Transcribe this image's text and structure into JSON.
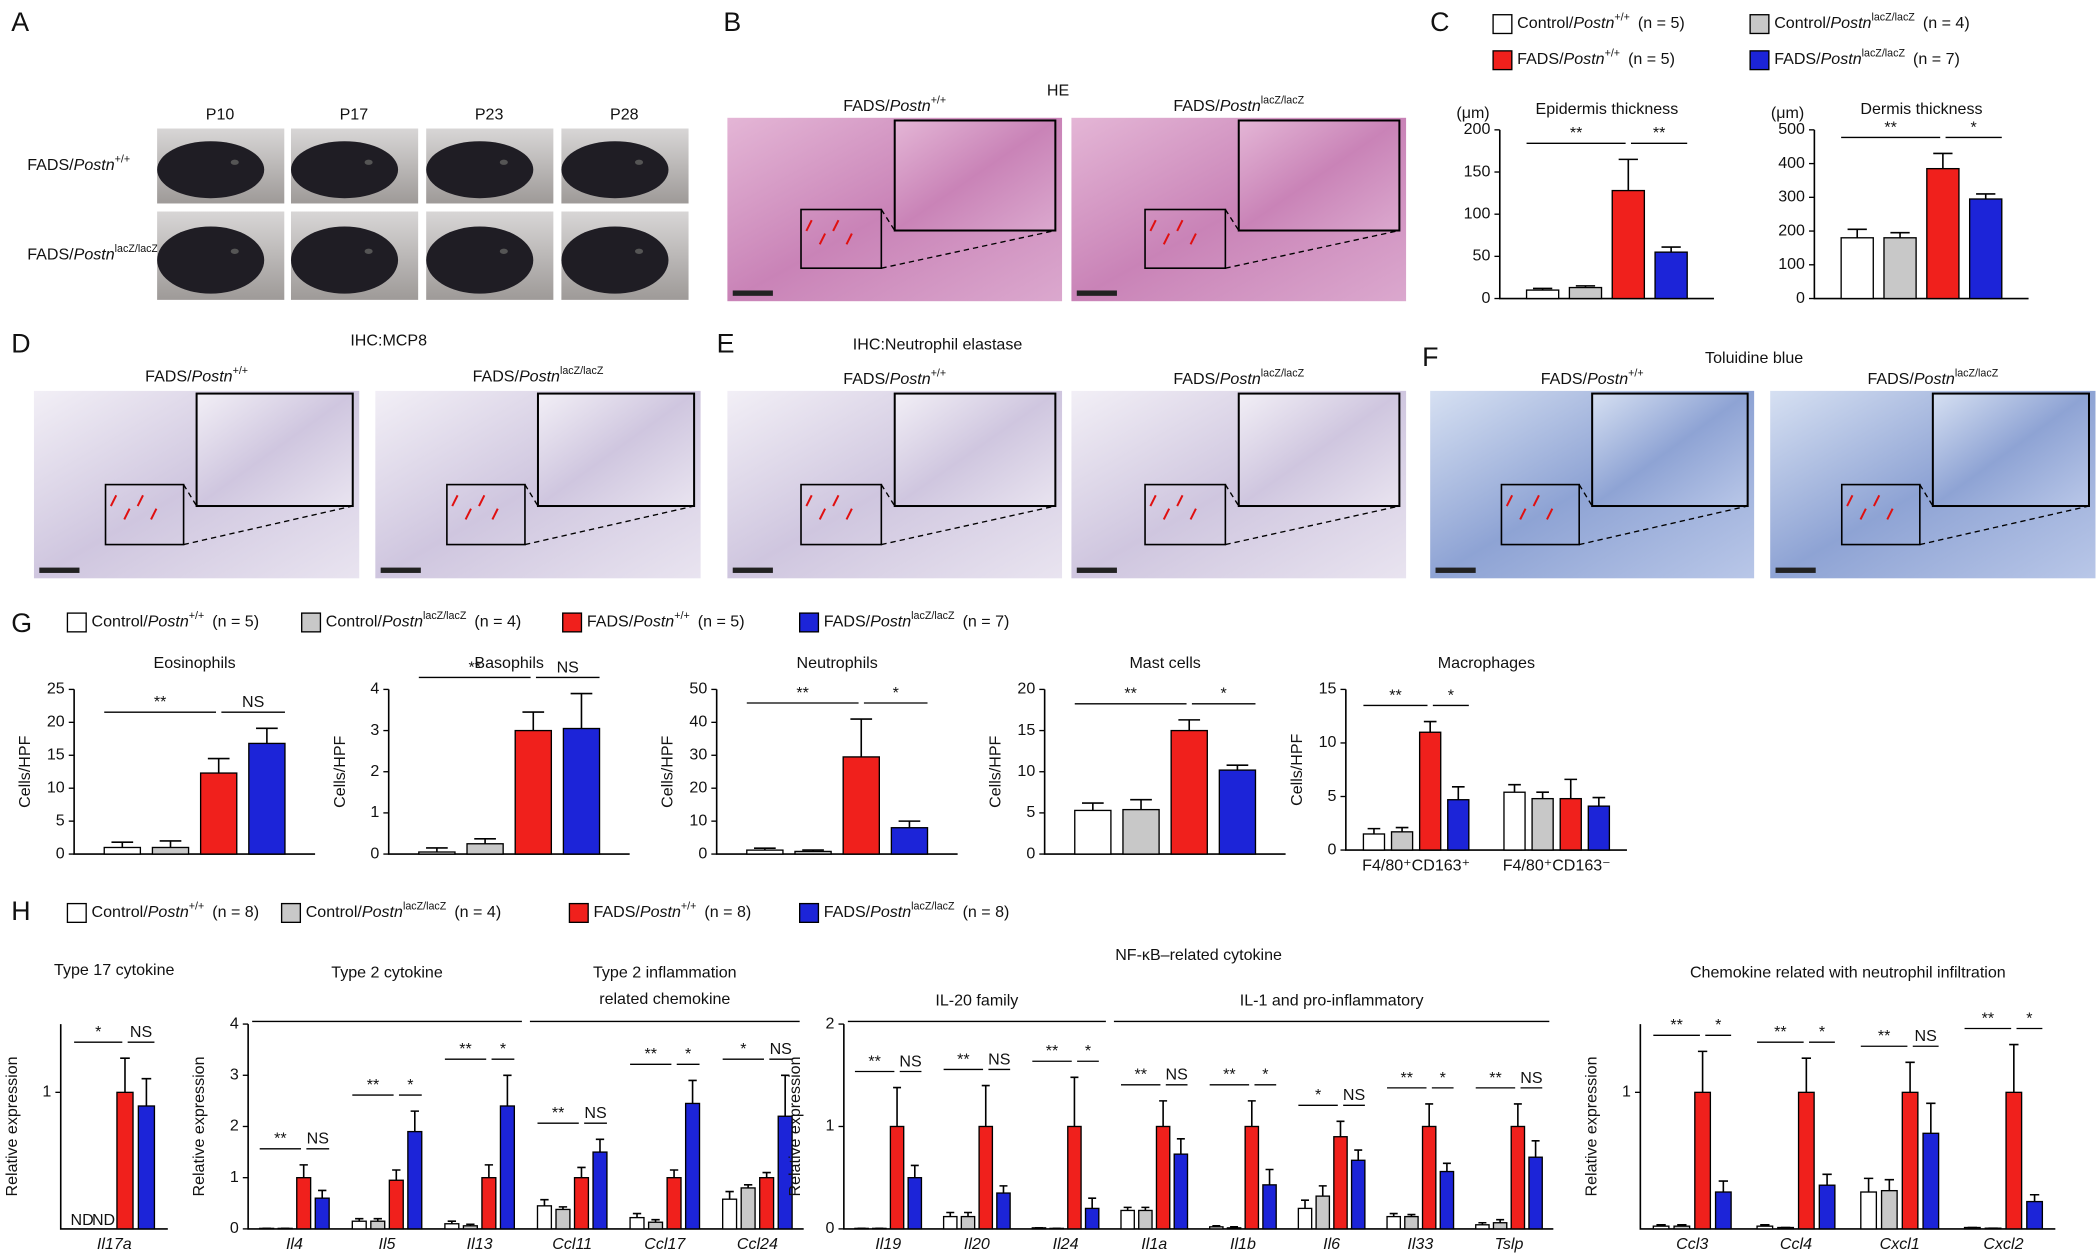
{
  "panels": {
    "letters": [
      "A",
      "B",
      "C",
      "D",
      "E",
      "F",
      "G",
      "H"
    ],
    "A": {
      "timepoints": [
        "P10",
        "P17",
        "P23",
        "P28"
      ],
      "rows": [
        {
          "lead": "FADS/",
          "gene": "Postn",
          "sup": "+/+"
        },
        {
          "lead": "FADS/",
          "gene": "Postn",
          "sup": "lacZ/lacZ"
        }
      ]
    },
    "B": {
      "title": "HE",
      "images": [
        {
          "lead": "FADS/",
          "gene": "Postn",
          "sup": "+/+"
        },
        {
          "lead": "FADS/",
          "gene": "Postn",
          "sup": "lacZ/lacZ"
        }
      ]
    },
    "C": {
      "legend": [
        {
          "lead": "Control/",
          "gene": "Postn",
          "sup": "+/+",
          "n": "(n = 5)"
        },
        {
          "lead": "Control/",
          "gene": "Postn",
          "sup": "lacZ/lacZ",
          "n": "(n = 4)"
        },
        {
          "lead": "FADS/",
          "gene": "Postn",
          "sup": "+/+",
          "n": "(n = 5)"
        },
        {
          "lead": "FADS/",
          "gene": "Postn",
          "sup": "lacZ/lacZ",
          "n": "(n = 7)"
        }
      ]
    },
    "D": {
      "title": "IHC:MCP8",
      "images": [
        {
          "lead": "FADS/",
          "gene": "Postn",
          "sup": "+/+"
        },
        {
          "lead": "FADS/",
          "gene": "Postn",
          "sup": "lacZ/lacZ"
        }
      ]
    },
    "E": {
      "title": "IHC:Neutrophil elastase",
      "images": [
        {
          "lead": "FADS/",
          "gene": "Postn",
          "sup": "+/+"
        },
        {
          "lead": "FADS/",
          "gene": "Postn",
          "sup": "lacZ/lacZ"
        }
      ]
    },
    "F": {
      "title": "Toluidine blue",
      "images": [
        {
          "lead": "FADS/",
          "gene": "Postn",
          "sup": "+/+"
        },
        {
          "lead": "FADS/",
          "gene": "Postn",
          "sup": "lacZ/lacZ"
        }
      ]
    },
    "G": {
      "legend": [
        {
          "lead": "Control/",
          "gene": "Postn",
          "sup": "+/+",
          "n": "(n = 5)"
        },
        {
          "lead": "Control/",
          "gene": "Postn",
          "sup": "lacZ/lacZ",
          "n": "(n = 4)"
        },
        {
          "lead": "FADS/",
          "gene": "Postn",
          "sup": "+/+",
          "n": "(n = 5)"
        },
        {
          "lead": "FADS/",
          "gene": "Postn",
          "sup": "lacZ/lacZ",
          "n": "(n = 7)"
        }
      ]
    },
    "H": {
      "legend": [
        {
          "lead": "Control/",
          "gene": "Postn",
          "sup": "+/+",
          "n": "(n = 8)"
        },
        {
          "lead": "Control/",
          "gene": "Postn",
          "sup": "lacZ/lacZ",
          "n": "(n = 4)"
        },
        {
          "lead": "FADS/",
          "gene": "Postn",
          "sup": "+/+",
          "n": "(n = 8)"
        },
        {
          "lead": "FADS/",
          "gene": "Postn",
          "sup": "lacZ/lacZ",
          "n": "(n = 8)"
        }
      ]
    }
  },
  "chart_data": [
    {
      "type": "bar",
      "title": "Epidermis thickness",
      "ylabel": "(μm)",
      "categories": [
        null
      ],
      "significance": [
        [
          "**",
          "**"
        ]
      ],
      "ylim": [
        0,
        200
      ],
      "yticks": [
        0,
        50,
        100,
        150,
        200
      ],
      "series": [
        {
          "color": "#ffffff",
          "values": [
            10
          ],
          "errors": [
            2
          ]
        },
        {
          "color": "#c8c8c8",
          "values": [
            13
          ],
          "errors": [
            2
          ]
        },
        {
          "color": "#f0201c",
          "values": [
            128
          ],
          "errors": [
            37
          ]
        },
        {
          "color": "#1c24d8",
          "values": [
            55
          ],
          "errors": [
            6
          ]
        }
      ]
    },
    {
      "type": "bar",
      "title": "Dermis thickness",
      "ylabel": "(μm)",
      "categories": [
        null
      ],
      "significance": [
        [
          "**",
          "*"
        ]
      ],
      "ylim": [
        0,
        500
      ],
      "yticks": [
        0,
        100,
        200,
        300,
        400,
        500
      ],
      "series": [
        {
          "color": "#ffffff",
          "values": [
            180
          ],
          "errors": [
            25
          ]
        },
        {
          "color": "#c8c8c8",
          "values": [
            180
          ],
          "errors": [
            15
          ]
        },
        {
          "color": "#f0201c",
          "values": [
            385
          ],
          "errors": [
            45
          ]
        },
        {
          "color": "#1c24d8",
          "values": [
            295
          ],
          "errors": [
            15
          ]
        }
      ]
    },
    {
      "type": "bar",
      "title": "Eosinophils",
      "ylabel": "Cells/HPF",
      "categories": [
        null
      ],
      "significance": [
        [
          "**",
          "NS"
        ]
      ],
      "ylim": [
        0,
        25
      ],
      "yticks": [
        0,
        5,
        10,
        15,
        20,
        25
      ],
      "series": [
        {
          "color": "#ffffff",
          "values": [
            1
          ],
          "errors": [
            0.8
          ]
        },
        {
          "color": "#c8c8c8",
          "values": [
            1
          ],
          "errors": [
            1
          ]
        },
        {
          "color": "#f0201c",
          "values": [
            12.3
          ],
          "errors": [
            2.2
          ]
        },
        {
          "color": "#1c24d8",
          "values": [
            16.8
          ],
          "errors": [
            2.3
          ]
        }
      ]
    },
    {
      "type": "bar",
      "title": "Basophils",
      "ylabel": "Cells/HPF",
      "categories": [
        null
      ],
      "significance": [
        [
          "**",
          "NS"
        ]
      ],
      "ylim": [
        0,
        4
      ],
      "yticks": [
        0,
        1,
        2,
        3,
        4
      ],
      "series": [
        {
          "color": "#ffffff",
          "values": [
            0.05
          ],
          "errors": [
            0.1
          ]
        },
        {
          "color": "#c8c8c8",
          "values": [
            0.25
          ],
          "errors": [
            0.12
          ]
        },
        {
          "color": "#f0201c",
          "values": [
            3
          ],
          "errors": [
            0.45
          ]
        },
        {
          "color": "#1c24d8",
          "values": [
            3.05
          ],
          "errors": [
            0.85
          ]
        }
      ]
    },
    {
      "type": "bar",
      "title": "Neutrophils",
      "ylabel": "Cells/HPF",
      "categories": [
        null
      ],
      "significance": [
        [
          "**",
          "*"
        ]
      ],
      "ylim": [
        0,
        50
      ],
      "yticks": [
        0,
        10,
        20,
        30,
        40,
        50
      ],
      "series": [
        {
          "color": "#ffffff",
          "values": [
            1.2
          ],
          "errors": [
            0.6
          ]
        },
        {
          "color": "#c8c8c8",
          "values": [
            0.8
          ],
          "errors": [
            0.4
          ]
        },
        {
          "color": "#f0201c",
          "values": [
            29.5
          ],
          "errors": [
            11.5
          ]
        },
        {
          "color": "#1c24d8",
          "values": [
            8
          ],
          "errors": [
            2
          ]
        }
      ]
    },
    {
      "type": "bar",
      "title": "Mast cells",
      "ylabel": "Cells/HPF",
      "categories": [
        null
      ],
      "significance": [
        [
          "**",
          "*"
        ]
      ],
      "ylim": [
        0,
        20
      ],
      "yticks": [
        0,
        5,
        10,
        15,
        20
      ],
      "series": [
        {
          "color": "#ffffff",
          "values": [
            5.3
          ],
          "errors": [
            0.9
          ]
        },
        {
          "color": "#c8c8c8",
          "values": [
            5.4
          ],
          "errors": [
            1.2
          ]
        },
        {
          "color": "#f0201c",
          "values": [
            15
          ],
          "errors": [
            1.3
          ]
        },
        {
          "color": "#1c24d8",
          "values": [
            10.2
          ],
          "errors": [
            0.6
          ]
        }
      ]
    },
    {
      "type": "bar",
      "title": "Macrophages",
      "ylabel": "Cells/HPF",
      "categories": [
        "F4/80⁺CD163⁺",
        "F4/80⁺CD163⁻"
      ],
      "significance": [
        [
          "**",
          "*"
        ],
        null
      ],
      "ylim": [
        0,
        15
      ],
      "yticks": [
        0,
        5,
        10,
        15
      ],
      "series": [
        {
          "color": "#ffffff",
          "values": [
            1.5,
            5.4
          ],
          "errors": [
            0.5,
            0.7
          ]
        },
        {
          "color": "#c8c8c8",
          "values": [
            1.7,
            4.8
          ],
          "errors": [
            0.4,
            0.6
          ]
        },
        {
          "color": "#f0201c",
          "values": [
            11,
            4.8
          ],
          "errors": [
            1,
            1.8
          ]
        },
        {
          "color": "#1c24d8",
          "values": [
            4.7,
            4.1
          ],
          "errors": [
            1.2,
            0.8
          ]
        }
      ]
    },
    {
      "type": "bar",
      "title": "Type 17 cytokine",
      "ylabel": "Relative expression",
      "category_groups": [
        {
          "categories": [
            "Il17a"
          ]
        }
      ],
      "significance": [
        [
          "*",
          "NS"
        ]
      ],
      "ylim": [
        0,
        1.5
      ],
      "yticks": [
        1
      ],
      "series": [
        {
          "color": "#ffffff",
          "values": [
            null
          ],
          "value_labels": [
            "ND"
          ],
          "errors": [
            null
          ]
        },
        {
          "color": "#c8c8c8",
          "values": [
            null
          ],
          "value_labels": [
            "ND"
          ],
          "errors": [
            null
          ]
        },
        {
          "color": "#f0201c",
          "values": [
            1
          ],
          "errors": [
            0.25
          ]
        },
        {
          "color": "#1c24d8",
          "values": [
            0.9
          ],
          "errors": [
            0.2
          ]
        }
      ]
    },
    {
      "type": "bar",
      "ylabel": "Relative expression",
      "category_groups": [
        {
          "label": [
            "Type 2 cytokine"
          ],
          "categories": [
            "Il4",
            "Il5",
            "Il13"
          ]
        },
        {
          "label": [
            "Type 2 inflammation",
            "related chemokine"
          ],
          "categories": [
            "Ccl11",
            "Ccl17",
            "Ccl24"
          ]
        }
      ],
      "significance": [
        [
          "**",
          "NS"
        ],
        [
          "**",
          "*"
        ],
        [
          "**",
          "*"
        ],
        [
          "**",
          "NS"
        ],
        [
          "**",
          "*"
        ],
        [
          "*",
          "NS"
        ]
      ],
      "ylim": [
        0,
        4
      ],
      "yticks": [
        0,
        1,
        2,
        3,
        4
      ],
      "series": [
        {
          "color": "#ffffff",
          "values": [
            0.01,
            0.15,
            0.1,
            0.45,
            0.22,
            0.58
          ],
          "errors": [
            0,
            0.05,
            0.05,
            0.12,
            0.08,
            0.15
          ]
        },
        {
          "color": "#c8c8c8",
          "values": [
            0.01,
            0.15,
            0.06,
            0.38,
            0.13,
            0.8
          ],
          "errors": [
            0,
            0.05,
            0.03,
            0.05,
            0.05,
            0.06
          ]
        },
        {
          "color": "#f0201c",
          "values": [
            1,
            0.95,
            1,
            1,
            1,
            1
          ],
          "errors": [
            0.25,
            0.2,
            0.25,
            0.2,
            0.15,
            0.1
          ]
        },
        {
          "color": "#1c24d8",
          "values": [
            0.6,
            1.9,
            2.4,
            1.5,
            2.45,
            2.2
          ],
          "errors": [
            0.15,
            0.4,
            0.6,
            0.25,
            0.45,
            0.8
          ]
        }
      ]
    },
    {
      "type": "bar",
      "title": "NF-κB–related cytokine",
      "ylabel": "Relative expression",
      "category_groups": [
        {
          "label": [
            "IL-20 family"
          ],
          "categories": [
            "Il19",
            "Il20",
            "Il24"
          ]
        },
        {
          "label": [
            "IL-1 and pro-inflammatory"
          ],
          "categories": [
            "Il1a",
            "Il1b",
            "Il6",
            "Il33",
            "Tslp"
          ]
        }
      ],
      "significance": [
        [
          "**",
          "NS"
        ],
        [
          "**",
          "NS"
        ],
        [
          "**",
          "*"
        ],
        [
          "**",
          "NS"
        ],
        [
          "**",
          "*"
        ],
        [
          "*",
          "NS"
        ],
        [
          "**",
          "*"
        ],
        [
          "**",
          "NS"
        ]
      ],
      "ylim": [
        0,
        2
      ],
      "yticks": [
        0,
        1,
        2
      ],
      "series": [
        {
          "color": "#ffffff",
          "values": [
            0.005,
            0.12,
            0.01,
            0.18,
            0.02,
            0.2,
            0.12,
            0.04
          ],
          "errors": [
            0,
            0.04,
            0,
            0.03,
            0.01,
            0.08,
            0.03,
            0.02
          ]
        },
        {
          "color": "#c8c8c8",
          "values": [
            0.005,
            0.12,
            0.005,
            0.18,
            0.01,
            0.32,
            0.12,
            0.06
          ],
          "errors": [
            0,
            0.04,
            0,
            0.03,
            0.01,
            0.1,
            0.02,
            0.03
          ]
        },
        {
          "color": "#f0201c",
          "values": [
            1,
            1,
            1,
            1,
            1,
            0.9,
            1,
            1
          ],
          "errors": [
            0.38,
            0.4,
            0.48,
            0.25,
            0.25,
            0.15,
            0.22,
            0.22
          ]
        },
        {
          "color": "#1c24d8",
          "values": [
            0.5,
            0.35,
            0.2,
            0.73,
            0.43,
            0.67,
            0.56,
            0.7
          ],
          "errors": [
            0.12,
            0.07,
            0.1,
            0.15,
            0.15,
            0.1,
            0.08,
            0.16
          ]
        }
      ]
    },
    {
      "type": "bar",
      "title": "Chemokine related with neutrophil infiltration",
      "ylabel": "Relative expression",
      "category_groups": [
        {
          "categories": [
            "Ccl3",
            "Ccl4",
            "Cxcl1",
            "Cxcl2"
          ]
        }
      ],
      "significance": [
        [
          "**",
          "*"
        ],
        [
          "**",
          "*"
        ],
        [
          "**",
          "NS"
        ],
        [
          "**",
          "*"
        ]
      ],
      "ylim": [
        0,
        1.5
      ],
      "yticks": [
        1
      ],
      "series": [
        {
          "color": "#ffffff",
          "values": [
            0.02,
            0.02,
            0.27,
            0.01
          ],
          "errors": [
            0.01,
            0.01,
            0.1,
            0
          ]
        },
        {
          "color": "#c8c8c8",
          "values": [
            0.02,
            0.01,
            0.28,
            0.005
          ],
          "errors": [
            0.01,
            0,
            0.08,
            0
          ]
        },
        {
          "color": "#f0201c",
          "values": [
            1,
            1,
            1,
            1
          ],
          "errors": [
            0.3,
            0.25,
            0.22,
            0.35
          ]
        },
        {
          "color": "#1c24d8",
          "values": [
            0.27,
            0.32,
            0.7,
            0.2
          ],
          "errors": [
            0.08,
            0.08,
            0.22,
            0.05
          ]
        }
      ]
    }
  ]
}
